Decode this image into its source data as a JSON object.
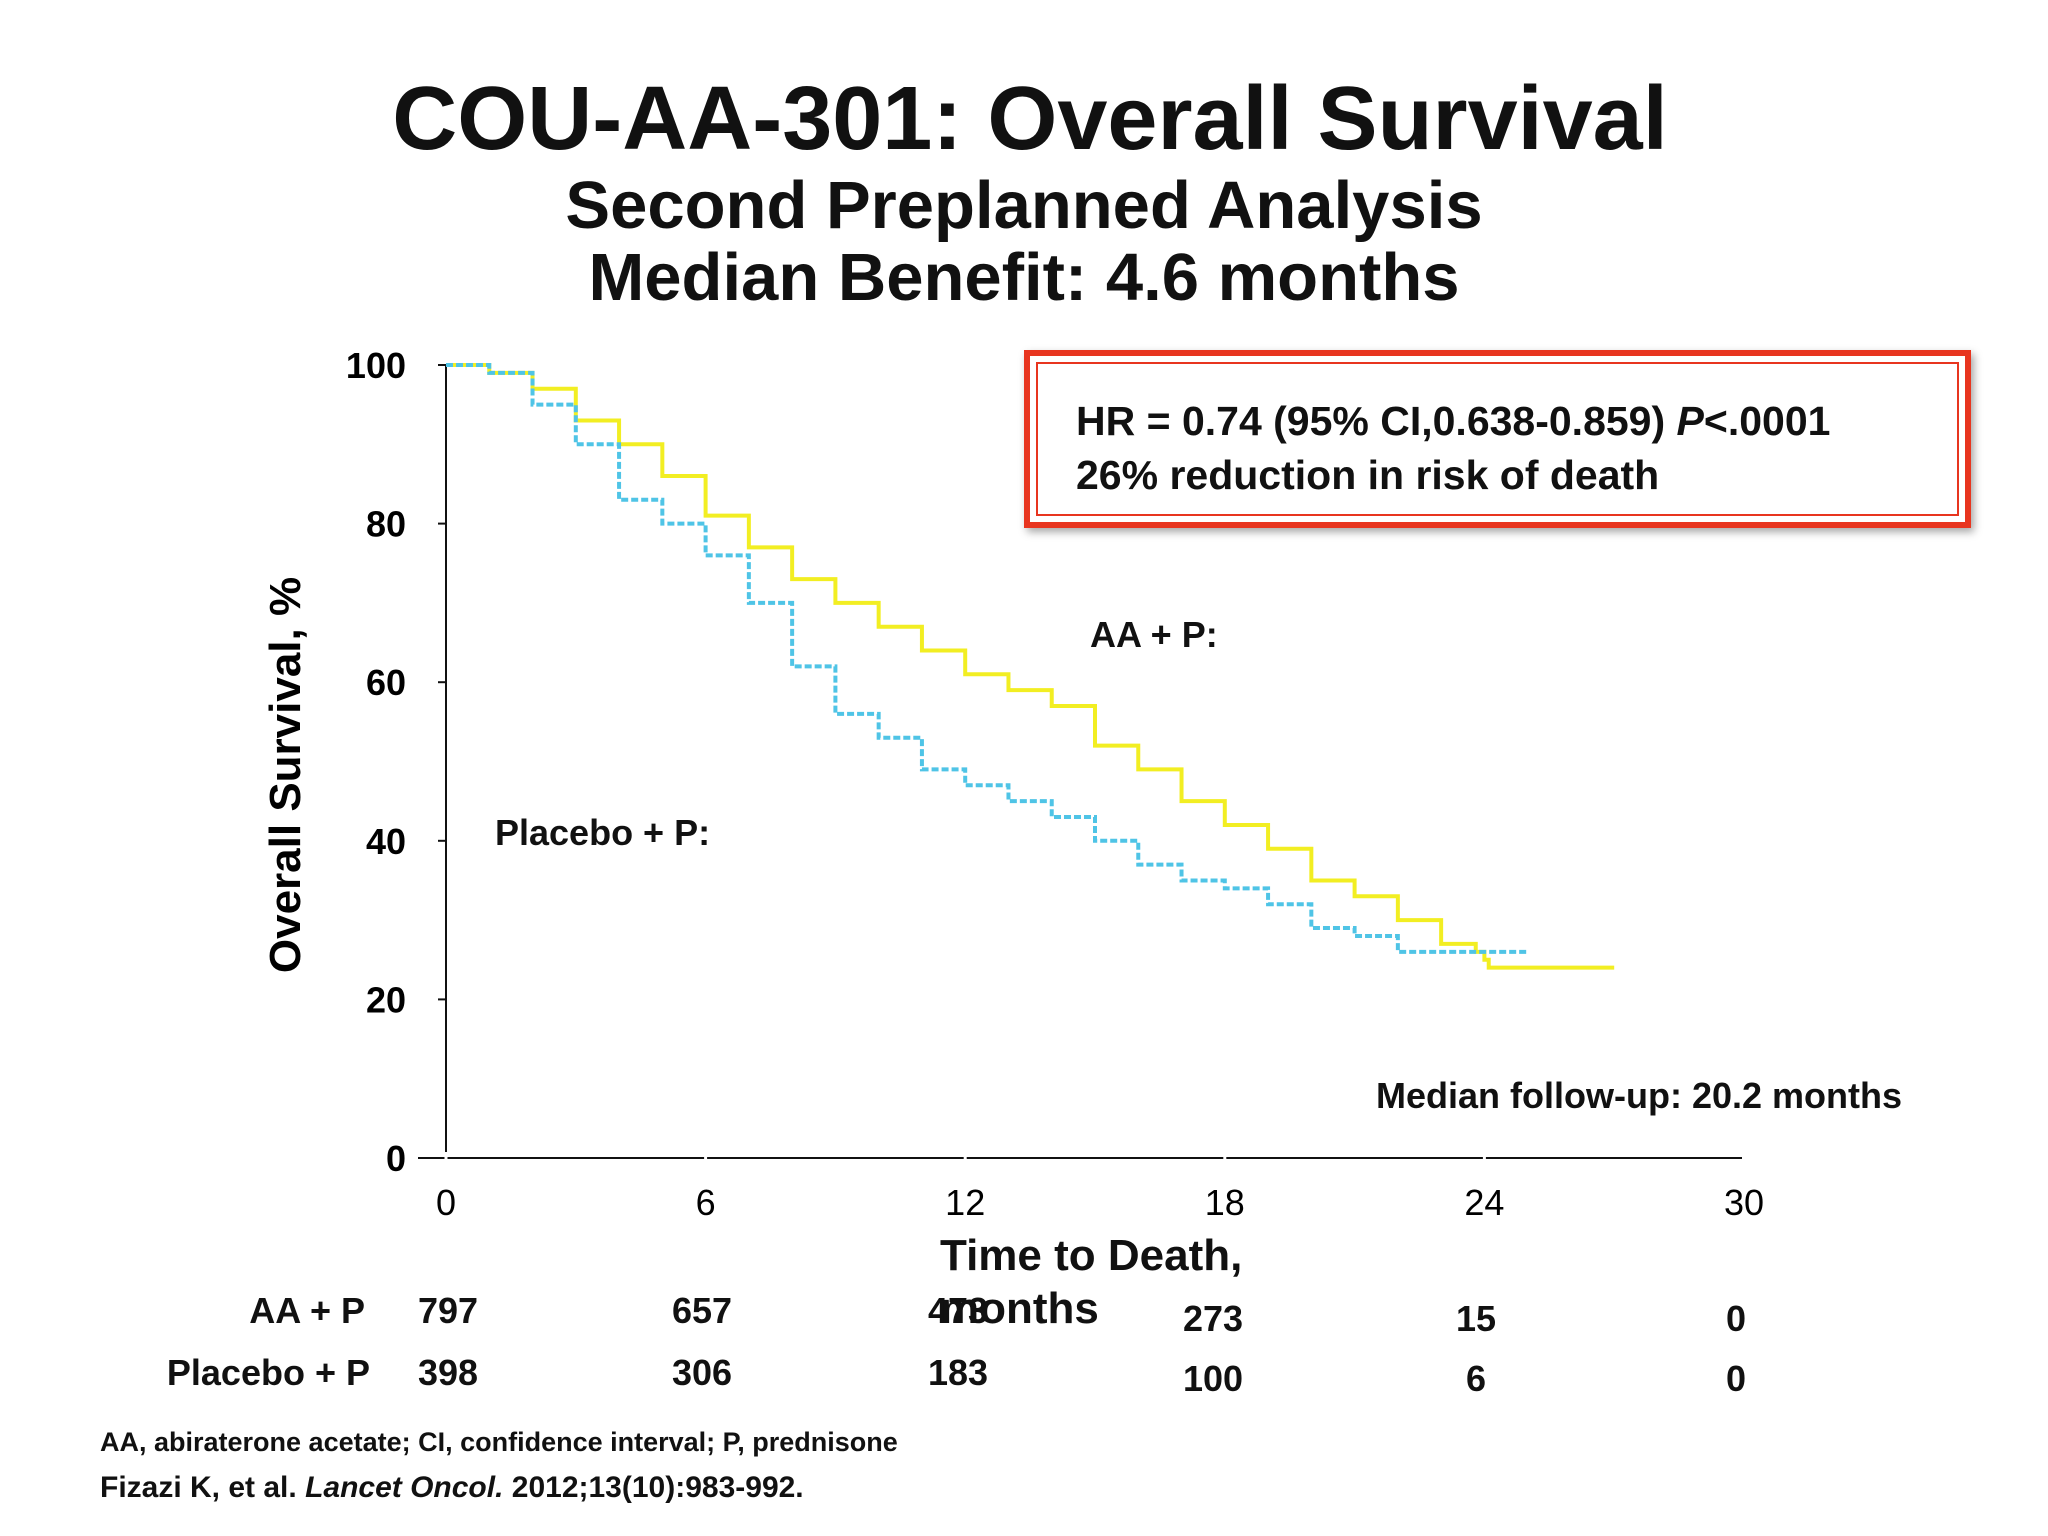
{
  "slide": {
    "title": "COU-AA-301: Overall Survival",
    "subtitle_line1": "Second Preplanned Analysis",
    "subtitle_line2": "Median Benefit: 4.6 months",
    "hr_box": {
      "line1_prefix": "HR = 0.74 (95% CI,0.638-0.859) ",
      "line1_p": "P",
      "line1_suffix": "<.0001",
      "line2": "26% reduction in risk of death"
    },
    "label_aa": "AA + P:",
    "label_placebo": "Placebo + P:",
    "median_followup": "Median follow-up: 20.2 months",
    "footnote": "AA, abiraterone acetate; CI, confidence interval; P, prednisone",
    "citation_authors": "Fizazi K, et al. ",
    "citation_journal": "Lancet Oncol.",
    "citation_details": " 2012;13(10):983-992."
  },
  "colors": {
    "aa": "#f2ee22",
    "placebo": "#4fc4e6",
    "hr_border": "#e8351f",
    "axis": "#111111"
  },
  "chart_data": {
    "type": "line",
    "title": "COU-AA-301: Overall Survival",
    "xlabel": "Time to Death, months",
    "ylabel": "Overall Survival, %",
    "xlim": [
      0,
      30
    ],
    "ylim": [
      0,
      100
    ],
    "xticks": [
      0,
      6,
      12,
      18,
      24,
      30
    ],
    "yticks": [
      0,
      20,
      40,
      60,
      80,
      100
    ],
    "series": [
      {
        "name": "AA + P",
        "style": "solid",
        "x": [
          0,
          1,
          2,
          3,
          4,
          5,
          6,
          7,
          8,
          9,
          10,
          11,
          12,
          13,
          14,
          15,
          16,
          17,
          18,
          19,
          20,
          21,
          22,
          23,
          23.8,
          24,
          24.1,
          27
        ],
        "y": [
          100,
          99,
          97,
          93,
          90,
          86,
          81,
          77,
          73,
          70,
          67,
          64,
          61,
          59,
          57,
          52,
          49,
          45,
          42,
          39,
          35,
          33,
          30,
          27,
          26,
          25,
          24,
          24
        ]
      },
      {
        "name": "Placebo + P",
        "style": "dashed",
        "x": [
          0,
          1,
          2,
          3,
          4,
          5,
          6,
          7,
          8,
          9,
          10,
          11,
          12,
          13,
          14,
          15,
          16,
          17,
          18,
          19,
          20,
          21,
          22,
          23,
          24,
          25
        ],
        "y": [
          100,
          99,
          95,
          90,
          83,
          80,
          76,
          70,
          62,
          56,
          53,
          49,
          47,
          45,
          43,
          40,
          37,
          35,
          34,
          32,
          29,
          28,
          26,
          26,
          26,
          26
        ]
      }
    ],
    "risk_table": {
      "times": [
        0,
        6,
        12,
        18,
        24,
        30
      ],
      "rows": [
        {
          "name": "AA + P",
          "counts": [
            "797",
            "657",
            "473",
            "273",
            "15",
            "0"
          ]
        },
        {
          "name": "Placebo + P",
          "counts": [
            "398",
            "306",
            "183",
            "100",
            "6",
            "0"
          ]
        }
      ]
    }
  }
}
